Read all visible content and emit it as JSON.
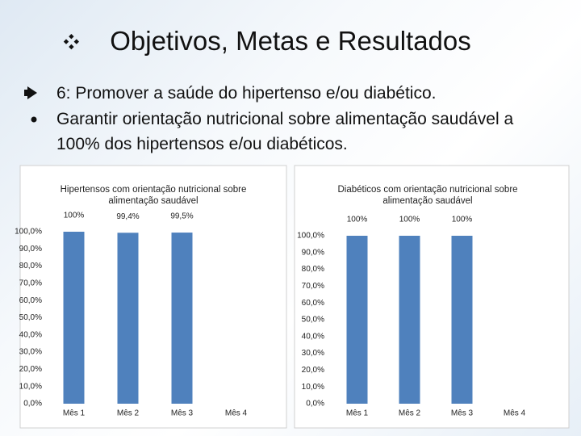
{
  "title": "Objetivos, Metas e Resultados",
  "bullets": [
    "6: Promover a saúde do hipertenso e/ou diabético.",
    "Garantir orientação nutricional sobre alimentação saudável a 100% dos hipertensos e/ou diabéticos."
  ],
  "chart_data": [
    {
      "type": "bar",
      "title": "Hipertensos com orientação nutricional sobre alimentação saudável",
      "categories": [
        "Mês 1",
        "Mês 2",
        "Mês 3",
        "Mês 4"
      ],
      "values": [
        100,
        99.4,
        99.5,
        null
      ],
      "value_labels": [
        "100%",
        "99,4%",
        "99,5%",
        null
      ],
      "color": "#4f81bd",
      "grid": false,
      "ylim": [
        0,
        100
      ],
      "yticks": [
        {
          "value": 0,
          "label": "0,0%"
        },
        {
          "value": 10,
          "label": "10,0%"
        },
        {
          "value": 20,
          "label": "20,0%"
        },
        {
          "value": 30,
          "label": "30,0%"
        },
        {
          "value": 40,
          "label": "40,0%"
        },
        {
          "value": 50,
          "label": "50,0%"
        },
        {
          "value": 60,
          "label": "60,0%"
        },
        {
          "value": 70,
          "label": "70,0%"
        },
        {
          "value": 80,
          "label": "80,0%"
        },
        {
          "value": 90,
          "label": "90,0%"
        },
        {
          "value": 100,
          "label": "100,0%"
        }
      ]
    },
    {
      "type": "bar",
      "title": "Diabéticos com orientação nutricional sobre alimentação saudável",
      "categories": [
        "Mês 1",
        "Mês 2",
        "Mês 3",
        "Mês 4"
      ],
      "values": [
        100,
        100,
        100,
        null
      ],
      "value_labels": [
        "100%",
        "100%",
        "100%",
        null
      ],
      "color": "#4f81bd",
      "grid": false,
      "ylim": [
        0,
        100
      ],
      "yticks": [
        {
          "value": 0,
          "label": "0,0%"
        },
        {
          "value": 10,
          "label": "10,0%"
        },
        {
          "value": 20,
          "label": "20,0%"
        },
        {
          "value": 30,
          "label": "30,0%"
        },
        {
          "value": 40,
          "label": "40,0%"
        },
        {
          "value": 50,
          "label": "50,0%"
        },
        {
          "value": 60,
          "label": "60,0%"
        },
        {
          "value": 70,
          "label": "70,0%"
        },
        {
          "value": 80,
          "label": "80,0%"
        },
        {
          "value": 90,
          "label": "90,0%"
        },
        {
          "value": 100,
          "label": "100,0%"
        }
      ]
    }
  ]
}
